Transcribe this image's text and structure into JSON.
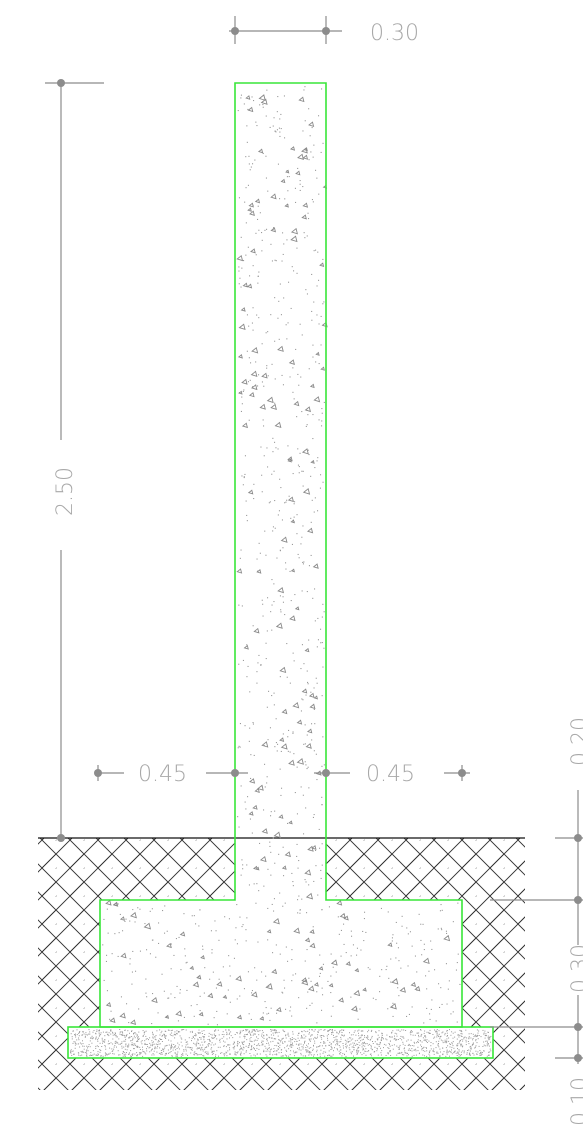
{
  "dimensions": {
    "stem_width": "0.30",
    "stem_height": "2.50",
    "left_footing_projection": "0.45",
    "right_footing_projection": "0.45",
    "top_depth": "0.20",
    "footing_thickness": "0.30",
    "lean_concrete_thickness": "0.10"
  },
  "colors": {
    "outline": "#39e639",
    "dimension": "#8c8c8c",
    "dimension_text": "#a8a8a8",
    "hatch": "#333333"
  }
}
